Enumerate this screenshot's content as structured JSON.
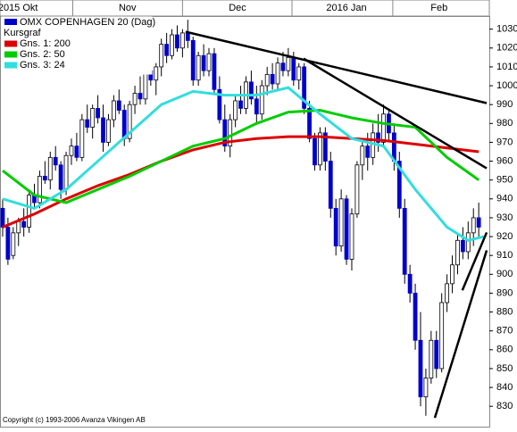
{
  "chart_data": {
    "type": "candlestick",
    "title": "OMX COPENHAGEN 20 (Dag)",
    "subtitle": "Kursgraf",
    "copyright": "Copyright (c) 1993-2006 Avanza Vikingen AB",
    "xlim": [
      -0.5,
      92
    ],
    "ylim": [
      823,
      1036
    ],
    "xticks": [
      {
        "value": 2.9,
        "label": "2015 Okt"
      },
      {
        "value": 23.6,
        "label": "Nov"
      },
      {
        "value": 44.4,
        "label": "Dec"
      },
      {
        "value": 65.0,
        "label": "2016 Jan"
      },
      {
        "value": 82.5,
        "label": "Feb"
      }
    ],
    "yticks": [
      830,
      840,
      850,
      860,
      870,
      880,
      890,
      900,
      910,
      920,
      930,
      940,
      950,
      960,
      970,
      980,
      990,
      1000,
      1010,
      1020,
      1030
    ],
    "up_color": "#ffffff",
    "down_color": "#0000cc",
    "x": [
      0,
      1,
      2,
      3,
      4,
      5,
      6,
      7,
      8,
      9,
      10,
      11,
      12,
      13,
      14,
      15,
      16,
      17,
      18,
      19,
      20,
      21,
      22,
      23,
      24,
      25,
      26,
      27,
      28,
      29,
      30,
      31,
      32,
      33,
      34,
      35,
      36,
      37,
      38,
      39,
      40,
      41,
      42,
      43,
      44,
      45,
      46,
      47,
      48,
      49,
      50,
      51,
      52,
      53,
      54,
      55,
      56,
      57,
      58,
      59,
      60,
      61,
      62,
      63,
      64,
      65,
      66,
      67,
      68,
      69,
      70,
      71,
      72,
      73,
      74,
      75,
      76,
      77,
      78,
      79,
      80,
      81,
      82,
      83,
      84,
      85,
      86,
      87,
      88,
      89,
      90
    ],
    "open": [
      935,
      925,
      910,
      922,
      928,
      925,
      942,
      938,
      952,
      950,
      962,
      958,
      945,
      963,
      968,
      962,
      982,
      978,
      988,
      983,
      970,
      982,
      992,
      987,
      972,
      990,
      996,
      993,
      1008,
      1003,
      1010,
      1022,
      1016,
      1027,
      1020,
      1028,
      1024,
      1003,
      1016,
      1008,
      1017,
      998,
      982,
      968,
      982,
      992,
      988,
      1002,
      993,
      985,
      1000,
      1006,
      1001,
      1012,
      1008,
      1015,
      1003,
      1010,
      988,
      972,
      958,
      975,
      960,
      935,
      915,
      940,
      908,
      932,
      958,
      968,
      962,
      975,
      970,
      985,
      975,
      960,
      935,
      900,
      890,
      865,
      835,
      845,
      865,
      850,
      885,
      895,
      905,
      918,
      912,
      922,
      930
    ],
    "high": [
      940,
      930,
      925,
      930,
      935,
      945,
      948,
      955,
      960,
      965,
      968,
      960,
      965,
      972,
      975,
      985,
      990,
      990,
      995,
      990,
      985,
      995,
      998,
      990,
      992,
      1000,
      1005,
      1010,
      1015,
      1012,
      1025,
      1028,
      1030,
      1032,
      1030,
      1035,
      1026,
      1018,
      1022,
      1020,
      1020,
      1005,
      990,
      985,
      995,
      1000,
      1005,
      1008,
      1000,
      1003,
      1010,
      1012,
      1015,
      1018,
      1020,
      1018,
      1012,
      1012,
      992,
      975,
      978,
      978,
      965,
      940,
      945,
      942,
      935,
      960,
      972,
      975,
      980,
      985,
      990,
      988,
      980,
      965,
      940,
      905,
      895,
      880,
      850,
      870,
      870,
      890,
      900,
      910,
      922,
      925,
      928,
      935,
      938
    ],
    "low": [
      920,
      905,
      908,
      915,
      920,
      922,
      935,
      935,
      948,
      945,
      955,
      940,
      942,
      958,
      960,
      960,
      975,
      972,
      980,
      965,
      968,
      978,
      985,
      968,
      970,
      985,
      990,
      990,
      1000,
      995,
      1005,
      1012,
      1014,
      1018,
      1015,
      1020,
      1000,
      1000,
      1005,
      1005,
      995,
      980,
      965,
      962,
      978,
      985,
      985,
      990,
      980,
      982,
      995,
      998,
      998,
      1005,
      1005,
      1000,
      998,
      985,
      970,
      955,
      955,
      955,
      930,
      910,
      912,
      905,
      902,
      930,
      950,
      955,
      958,
      965,
      968,
      970,
      955,
      930,
      895,
      885,
      860,
      830,
      825,
      842,
      845,
      848,
      880,
      890,
      900,
      908,
      908,
      915,
      920
    ],
    "close": [
      925,
      908,
      922,
      928,
      925,
      942,
      938,
      952,
      950,
      962,
      958,
      945,
      963,
      968,
      962,
      982,
      978,
      988,
      983,
      970,
      982,
      992,
      987,
      972,
      990,
      996,
      993,
      1008,
      1003,
      1010,
      1022,
      1016,
      1027,
      1020,
      1028,
      1024,
      1003,
      1016,
      1008,
      1017,
      998,
      982,
      968,
      982,
      992,
      988,
      1002,
      993,
      985,
      1000,
      1006,
      1001,
      1012,
      1008,
      1015,
      1003,
      1010,
      988,
      972,
      958,
      975,
      960,
      935,
      915,
      940,
      908,
      932,
      958,
      968,
      962,
      975,
      970,
      985,
      975,
      960,
      935,
      900,
      890,
      865,
      835,
      845,
      865,
      850,
      885,
      895,
      905,
      918,
      912,
      922,
      930,
      925
    ],
    "series": [
      {
        "name": "Gns. 1: 200",
        "color": "#dd0000",
        "x": [
          0,
          6,
          12,
          18,
          24,
          30,
          36,
          42,
          48,
          54,
          60,
          66,
          72,
          78,
          84,
          90
        ],
        "values": [
          925,
          932,
          940,
          947,
          953,
          960,
          966,
          970,
          972,
          973,
          973,
          972,
          971,
          969,
          967,
          965
        ]
      },
      {
        "name": "Gns. 2: 50",
        "color": "#00cc00",
        "x": [
          0,
          6,
          12,
          18,
          24,
          30,
          36,
          42,
          48,
          54,
          60,
          66,
          72,
          78,
          84,
          90
        ],
        "values": [
          955,
          942,
          938,
          945,
          952,
          960,
          968,
          972,
          980,
          986,
          987,
          983,
          980,
          978,
          962,
          950
        ]
      },
      {
        "name": "Gns. 3: 24",
        "color": "#33dddd",
        "x": [
          0,
          6,
          12,
          18,
          24,
          30,
          36,
          42,
          48,
          54,
          60,
          66,
          72,
          78,
          84,
          88,
          91
        ],
        "values": [
          940,
          935,
          945,
          960,
          975,
          990,
          997,
          995,
          995,
          999,
          985,
          972,
          968,
          945,
          925,
          918,
          920
        ]
      }
    ],
    "trend_lines": [
      {
        "x": [
          34.6,
          91.5
        ],
        "y": [
          1028.6,
          990.8
        ]
      },
      {
        "x": [
          56.9,
          91.5
        ],
        "y": [
          1014.4,
          956.2
        ]
      },
      {
        "x": [
          81.7,
          91.5
        ],
        "y": [
          823.9,
          912.7
        ]
      },
      {
        "x": [
          86.9,
          91.5
        ],
        "y": [
          891.5,
          922.2
        ]
      }
    ]
  }
}
